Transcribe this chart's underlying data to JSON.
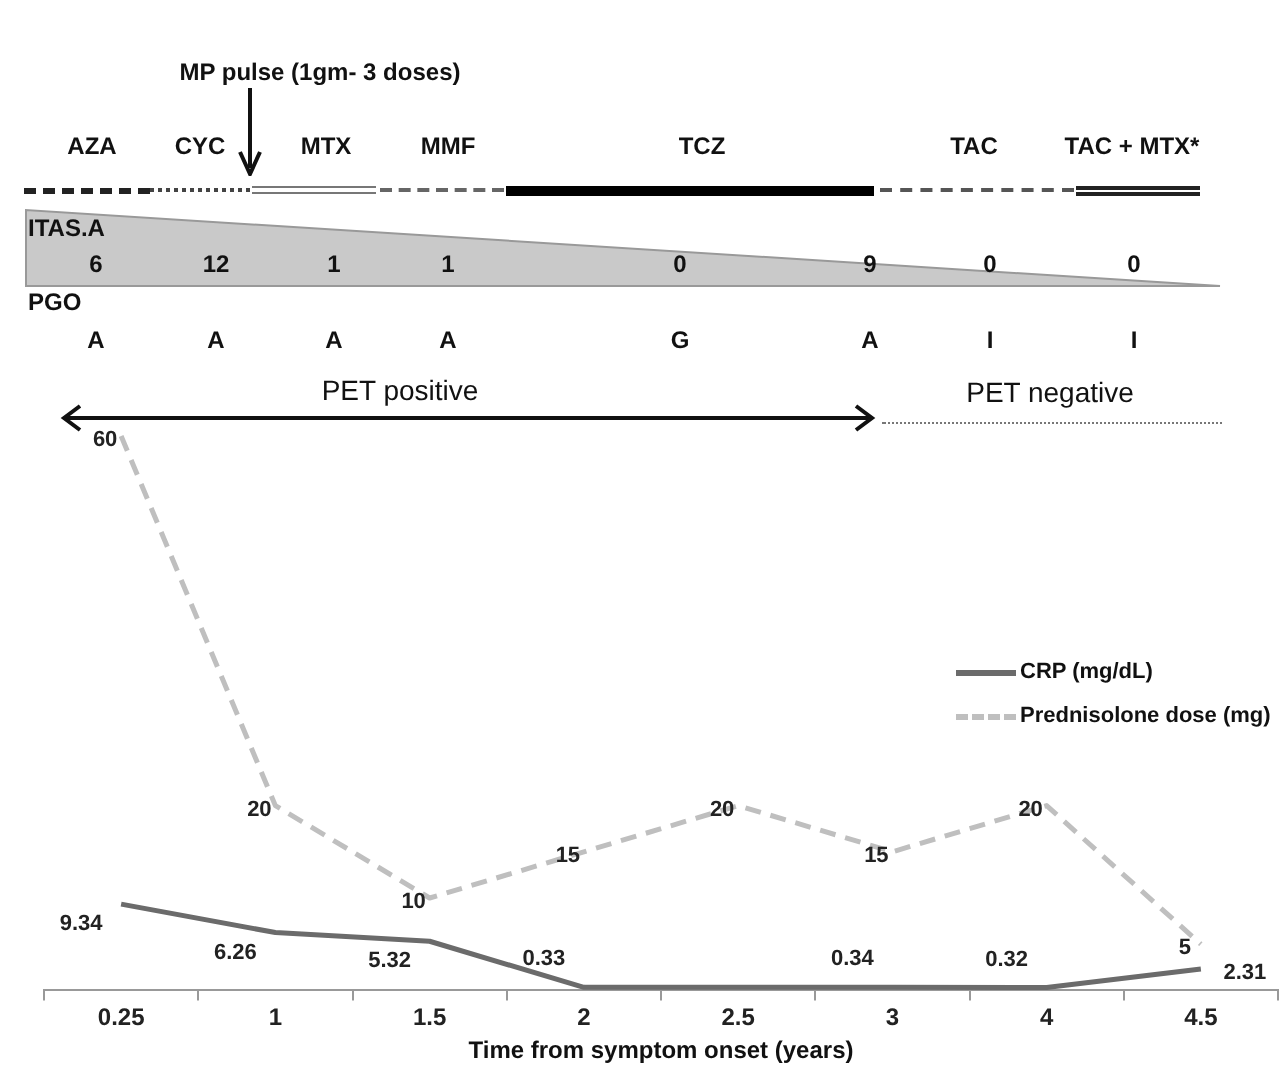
{
  "chart_data": {
    "type": "line",
    "xlabel": "Time from symptom onset (years)",
    "categories": [
      "0.25",
      "1",
      "1.5",
      "2",
      "2.5",
      "3",
      "4",
      "4.5"
    ],
    "series": [
      {
        "name": "CRP (mg/dL)",
        "color": "#6b6b6b",
        "line_style": "solid",
        "values": [
          9.34,
          6.26,
          5.32,
          0.33,
          0.33,
          0.34,
          0.32,
          2.31
        ],
        "value_labels": [
          "9.34",
          "6.26",
          "5.32",
          "0.33",
          null,
          "0.34",
          "0.32",
          "2.31"
        ]
      },
      {
        "name": "Prednisolone dose (mg)",
        "color": "#bfbfbf",
        "line_style": "dashed",
        "values": [
          60,
          20,
          10,
          15,
          20,
          15,
          20,
          5
        ],
        "value_labels": [
          "60",
          "20",
          "10",
          "15",
          "20",
          "15",
          "20",
          "5"
        ]
      }
    ],
    "marker": "none",
    "grid": false,
    "legend": "right",
    "tick_labels": "x",
    "annotations": [
      "AZA",
      "CYC",
      "MTX",
      "MMF",
      "TCZ",
      "TAC",
      "TAC + MTX*",
      "MP pulse (1gm- 3 doses)",
      "ITAS.A",
      "6",
      "12",
      "1",
      "1",
      "0",
      "9",
      "0",
      "0",
      "PGO",
      "A",
      "A",
      "A",
      "A",
      "G",
      "A",
      "I",
      "I",
      "PET positive",
      "PET negative"
    ]
  }
}
